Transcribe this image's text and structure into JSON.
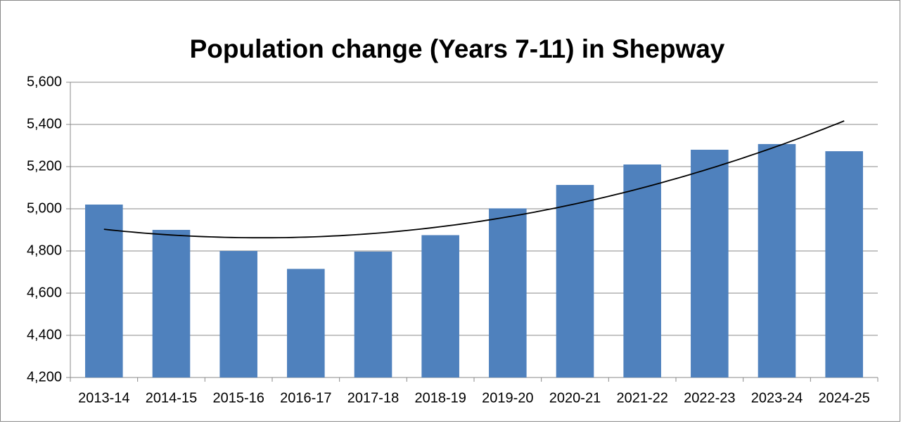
{
  "chart_data": {
    "type": "bar",
    "title": "Population change (Years 7-11) in Shepway",
    "categories": [
      "2013-14",
      "2014-15",
      "2015-16",
      "2016-17",
      "2017-18",
      "2018-19",
      "2019-20",
      "2020-21",
      "2021-22",
      "2022-23",
      "2023-24",
      "2024-25"
    ],
    "values": [
      5020,
      4900,
      4800,
      4715,
      4797,
      4875,
      5002,
      5113,
      5210,
      5280,
      5307,
      5273
    ],
    "color": "#4f81bd",
    "ylim": [
      4200,
      5600
    ],
    "yticks": [
      {
        "value": 4200,
        "label": "4,200"
      },
      {
        "value": 4400,
        "label": "4,400"
      },
      {
        "value": 4600,
        "label": "4,600"
      },
      {
        "value": 4800,
        "label": "4,800"
      },
      {
        "value": 5000,
        "label": "5,000"
      },
      {
        "value": 5200,
        "label": "5,200"
      },
      {
        "value": 5400,
        "label": "5,400"
      },
      {
        "value": 5600,
        "label": "5,600"
      }
    ],
    "grid": true,
    "trendline": {
      "type": "polynomial",
      "order": 2,
      "color": "#000000"
    }
  }
}
